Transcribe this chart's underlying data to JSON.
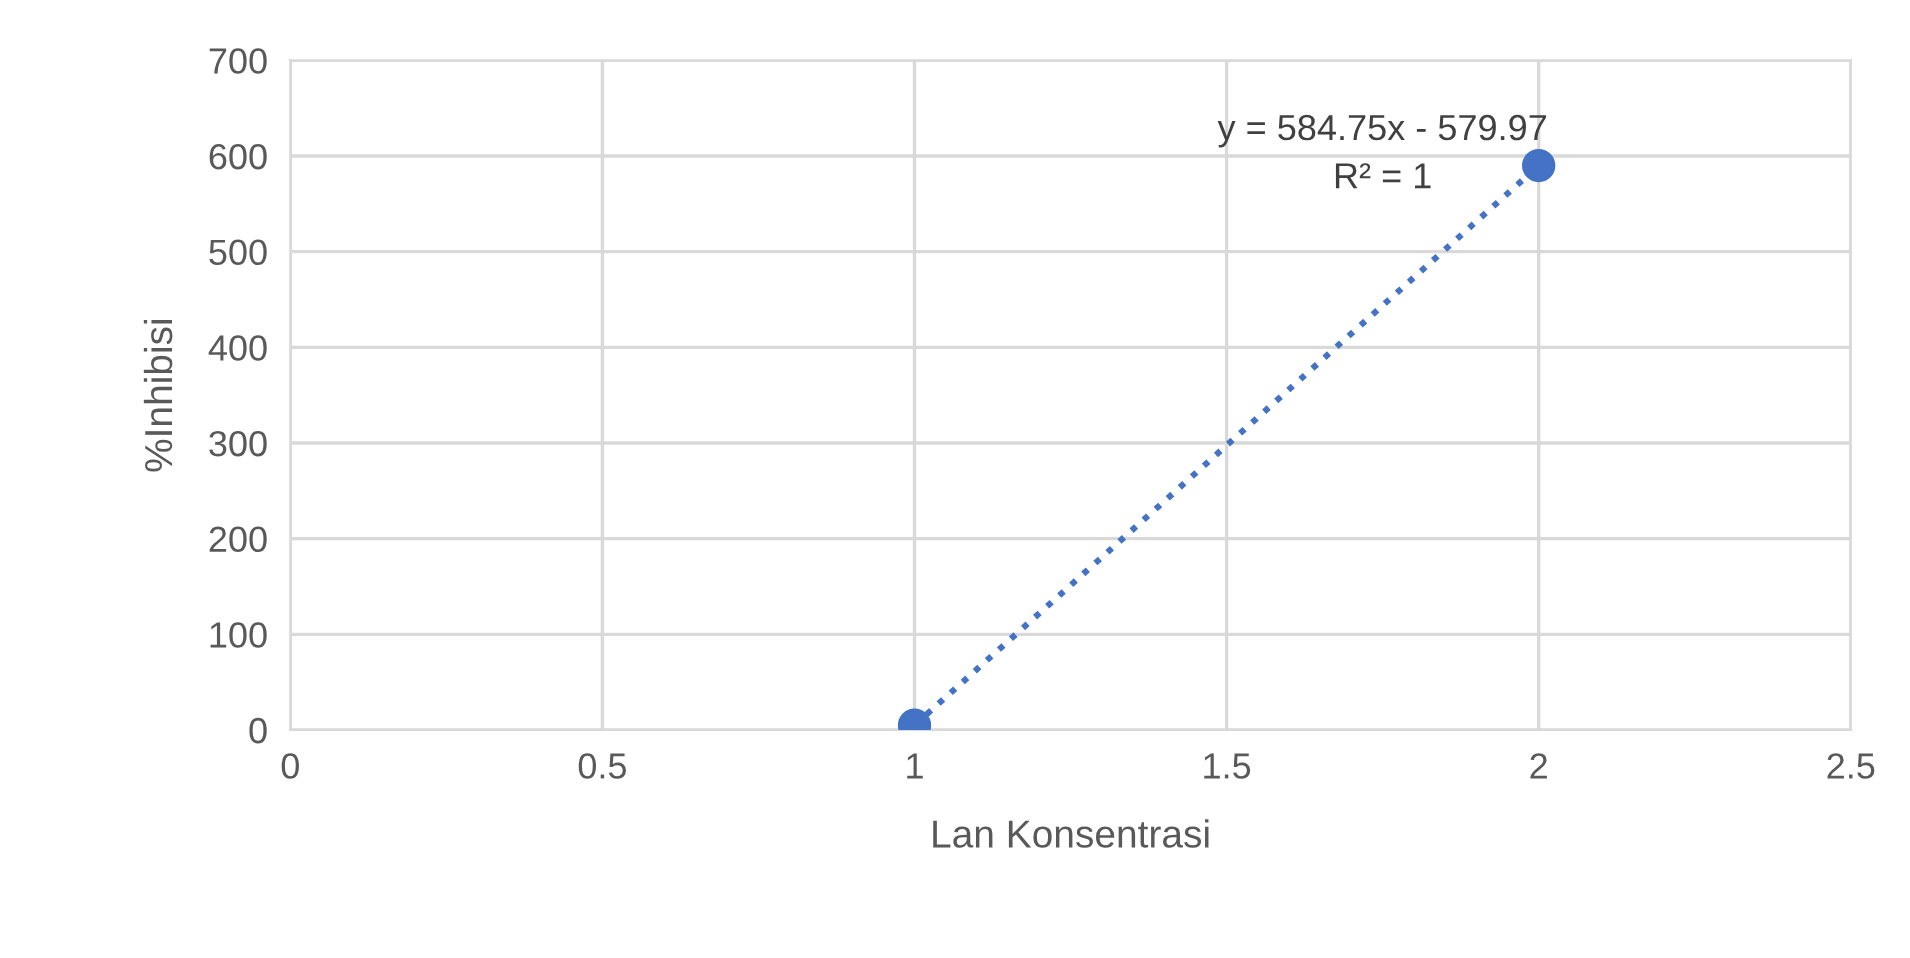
{
  "chart_data": {
    "type": "scatter",
    "xlabel": "Lan Konsentrasi",
    "ylabel": "%Inhibisi",
    "xlim": [
      0,
      2.5
    ],
    "xticks": [
      0,
      0.5,
      1,
      1.5,
      2,
      2.5
    ],
    "ylim": [
      0,
      700
    ],
    "yticks": [
      0,
      100,
      200,
      300,
      400,
      500,
      600,
      700
    ],
    "grid": true,
    "legend": false,
    "x": [
      1,
      2
    ],
    "series": [
      {
        "color": "#4472c4",
        "values": [
          5,
          590
        ],
        "marker": "circle"
      },
      {
        "type": "line",
        "color": "#4472c4",
        "values": [
          5,
          590
        ],
        "marker": "none",
        "line_style": "dotted"
      }
    ],
    "annotations": [
      "y = 584.75x - 579.97",
      "R² = 1"
    ]
  }
}
